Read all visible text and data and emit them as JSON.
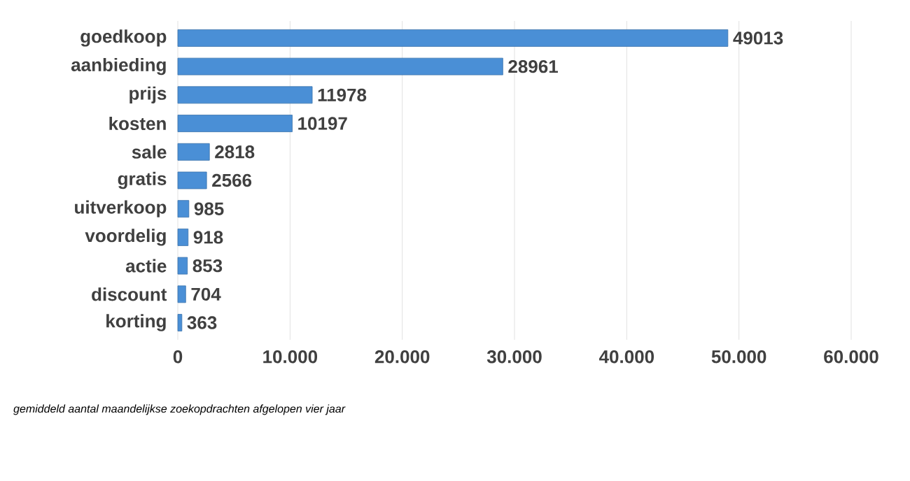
{
  "chart_data": {
    "type": "bar",
    "orientation": "horizontal",
    "categories": [
      "goedkoop",
      "aanbieding",
      "prijs",
      "kosten",
      "sale",
      "gratis",
      "uitverkoop",
      "voordelig",
      "actie",
      "discount",
      "korting"
    ],
    "values": [
      49013,
      28961,
      11978,
      10197,
      2818,
      2566,
      985,
      918,
      853,
      704,
      363
    ],
    "color": "#4a8fd6",
    "data_labels": true,
    "grid": "x",
    "xlim": [
      0,
      60000
    ],
    "xticks": [
      0,
      {
        "value": 10000,
        "label": "10.000"
      },
      {
        "value": 20000,
        "label": "20.000"
      },
      {
        "value": 30000,
        "label": "30.000"
      },
      {
        "value": 40000,
        "label": "40.000"
      },
      {
        "value": 50000,
        "label": "50.000"
      },
      {
        "value": 60000,
        "label": "60.000"
      }
    ],
    "annotations": [
      "gemiddeld aantal maandelijkse zoekopdrachten afgelopen vier jaar"
    ]
  }
}
